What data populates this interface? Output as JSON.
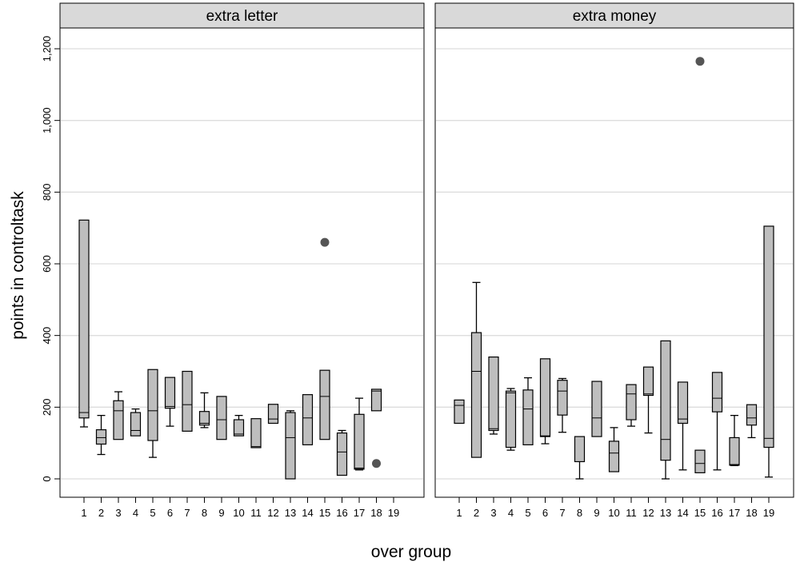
{
  "chart_data": {
    "type": "boxplot",
    "xlabel": "over group",
    "ylabel": "points in controltask",
    "ylim": [
      -50,
      1250
    ],
    "yticks": [
      0,
      200,
      400,
      600,
      800,
      1000,
      1200
    ],
    "ytick_labels": [
      "0",
      "200",
      "400",
      "600",
      "800",
      "1,000",
      "1,200"
    ],
    "categories": [
      "1",
      "2",
      "3",
      "4",
      "5",
      "6",
      "7",
      "8",
      "9",
      "10",
      "11",
      "12",
      "13",
      "14",
      "15",
      "16",
      "17",
      "18",
      "19"
    ],
    "grid": true,
    "colors": {
      "box_fill": "#bebebe",
      "outlier": "#555555",
      "strip_fill": "#d9d9d9",
      "grid": "#dddddd"
    },
    "panels": [
      {
        "title": "extra letter",
        "boxes": [
          {
            "group": "1",
            "min": 145,
            "q1": 170,
            "median": 185,
            "q3": 722,
            "max": 722
          },
          {
            "group": "2",
            "min": 68,
            "q1": 97,
            "median": 115,
            "q3": 137,
            "max": 177
          },
          {
            "group": "3",
            "min": 110,
            "q1": 110,
            "median": 190,
            "q3": 218,
            "max": 243
          },
          {
            "group": "4",
            "min": 120,
            "q1": 120,
            "median": 135,
            "q3": 185,
            "max": 195
          },
          {
            "group": "5",
            "min": 60,
            "q1": 107,
            "median": 190,
            "q3": 305,
            "max": 305
          },
          {
            "group": "6",
            "min": 147,
            "q1": 197,
            "median": 202,
            "q3": 283,
            "max": 283
          },
          {
            "group": "7",
            "min": 133,
            "q1": 133,
            "median": 207,
            "q3": 300,
            "max": 300
          },
          {
            "group": "8",
            "min": 143,
            "q1": 150,
            "median": 155,
            "q3": 188,
            "max": 240
          },
          {
            "group": "9",
            "min": 110,
            "q1": 110,
            "median": 165,
            "q3": 230,
            "max": 230
          },
          {
            "group": "10",
            "min": 120,
            "q1": 120,
            "median": 125,
            "q3": 165,
            "max": 177
          },
          {
            "group": "11",
            "min": 87,
            "q1": 87,
            "median": 90,
            "q3": 168,
            "max": 168
          },
          {
            "group": "12",
            "min": 155,
            "q1": 155,
            "median": 167,
            "q3": 208,
            "max": 208
          },
          {
            "group": "13",
            "min": 0,
            "q1": 0,
            "median": 115,
            "q3": 185,
            "max": 190
          },
          {
            "group": "14",
            "min": 95,
            "q1": 95,
            "median": 170,
            "q3": 235,
            "max": 235
          },
          {
            "group": "15",
            "min": 110,
            "q1": 110,
            "median": 230,
            "q3": 303,
            "max": 303,
            "outliers": [
              660
            ]
          },
          {
            "group": "16",
            "min": 10,
            "q1": 10,
            "median": 75,
            "q3": 128,
            "max": 135
          },
          {
            "group": "17",
            "min": 25,
            "q1": 27,
            "median": 30,
            "q3": 180,
            "max": 225
          },
          {
            "group": "18",
            "min": 190,
            "q1": 190,
            "median": 245,
            "q3": 250,
            "max": 250,
            "outliers": [
              43
            ]
          }
        ]
      },
      {
        "title": "extra money",
        "boxes": [
          {
            "group": "1",
            "min": 155,
            "q1": 155,
            "median": 205,
            "q3": 220,
            "max": 220
          },
          {
            "group": "2",
            "min": 60,
            "q1": 60,
            "median": 300,
            "q3": 408,
            "max": 548
          },
          {
            "group": "3",
            "min": 125,
            "q1": 135,
            "median": 140,
            "q3": 340,
            "max": 340
          },
          {
            "group": "4",
            "min": 80,
            "q1": 88,
            "median": 240,
            "q3": 245,
            "max": 252
          },
          {
            "group": "5",
            "min": 95,
            "q1": 95,
            "median": 195,
            "q3": 248,
            "max": 282
          },
          {
            "group": "6",
            "min": 98,
            "q1": 118,
            "median": 120,
            "q3": 335,
            "max": 335
          },
          {
            "group": "7",
            "min": 130,
            "q1": 178,
            "median": 245,
            "q3": 275,
            "max": 280
          },
          {
            "group": "8",
            "min": 0,
            "q1": 48,
            "median": 48,
            "q3": 118,
            "max": 118
          },
          {
            "group": "9",
            "min": 118,
            "q1": 118,
            "median": 170,
            "q3": 272,
            "max": 272
          },
          {
            "group": "10",
            "min": 20,
            "q1": 20,
            "median": 72,
            "q3": 105,
            "max": 143
          },
          {
            "group": "11",
            "min": 147,
            "q1": 165,
            "median": 237,
            "q3": 263,
            "max": 263
          },
          {
            "group": "12",
            "min": 128,
            "q1": 233,
            "median": 237,
            "q3": 312,
            "max": 312
          },
          {
            "group": "13",
            "min": 0,
            "q1": 52,
            "median": 110,
            "q3": 385,
            "max": 385
          },
          {
            "group": "14",
            "min": 25,
            "q1": 155,
            "median": 167,
            "q3": 270,
            "max": 270
          },
          {
            "group": "15",
            "min": 17,
            "q1": 17,
            "median": 43,
            "q3": 80,
            "max": 80,
            "outliers": [
              1165
            ]
          },
          {
            "group": "16",
            "min": 25,
            "q1": 187,
            "median": 225,
            "q3": 297,
            "max": 297
          },
          {
            "group": "17",
            "min": 37,
            "q1": 38,
            "median": 40,
            "q3": 115,
            "max": 177
          },
          {
            "group": "18",
            "min": 115,
            "q1": 150,
            "median": 170,
            "q3": 207,
            "max": 207
          },
          {
            "group": "19",
            "min": 5,
            "q1": 88,
            "median": 113,
            "q3": 705,
            "max": 705
          }
        ]
      }
    ]
  }
}
